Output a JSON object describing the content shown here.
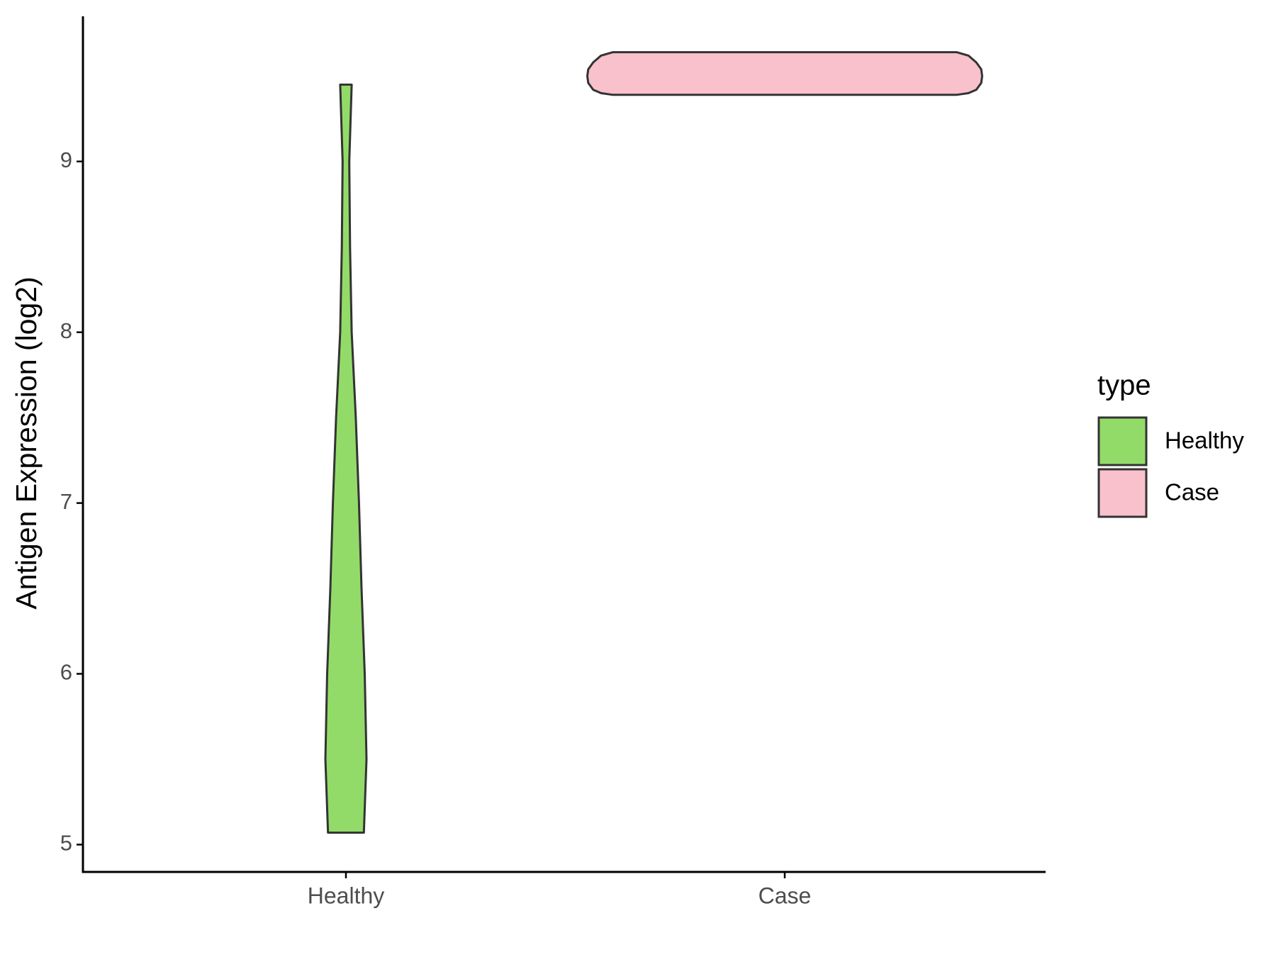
{
  "chart_data": {
    "type": "violin",
    "y_label": "Antigen Expression (log2)",
    "legend_title": "type",
    "categories": [
      "Healthy",
      "Case"
    ],
    "ylim": [
      4.84,
      9.85
    ],
    "yticks": [
      5,
      6,
      7,
      8,
      9
    ],
    "grid": false,
    "series": [
      {
        "name": "Healthy",
        "color": "#93db69",
        "y": [
          5.07,
          5.5,
          6,
          6.5,
          7,
          7.5,
          8,
          8.5,
          9,
          9.45
        ],
        "density": [
          0.091,
          0.104,
          0.095,
          0.079,
          0.066,
          0.05,
          0.029,
          0.021,
          0.017,
          0.029
        ]
      },
      {
        "name": "Case",
        "color": "#f8c1cc",
        "y": [
          9.39,
          9.4,
          9.42,
          9.46,
          9.5,
          9.54,
          9.58,
          9.62,
          9.64
        ],
        "density": [
          0.87,
          0.93,
          0.97,
          0.995,
          1,
          0.995,
          0.97,
          0.93,
          0.87
        ]
      }
    ]
  }
}
